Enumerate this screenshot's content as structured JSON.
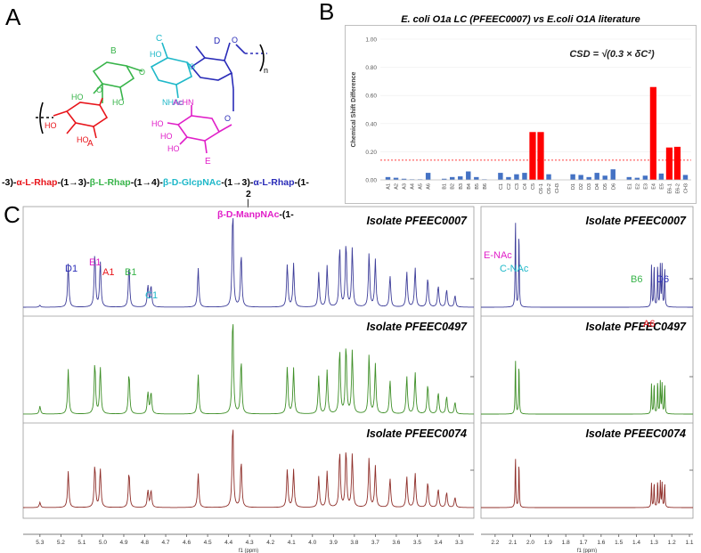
{
  "panels": {
    "a": "A",
    "b": "B",
    "c": "C"
  },
  "structure": {
    "residues": [
      {
        "id": "A",
        "color": "#e8151b"
      },
      {
        "id": "B",
        "color": "#38b44a"
      },
      {
        "id": "C",
        "color": "#1fb8c9"
      },
      {
        "id": "D",
        "color": "#2a2cb8"
      },
      {
        "id": "E",
        "color": "#e01fc8"
      }
    ],
    "atom_labels": {
      "ho": "HO",
      "o": "O",
      "nhac": "NHAc",
      "achn": "AcHN",
      "n": "n"
    },
    "sequence": [
      {
        "text": "-3)-",
        "color": "#000000"
      },
      {
        "text": "α-L-Rhap",
        "color": "#e8151b"
      },
      {
        "text": "-(1→3)-",
        "color": "#000000"
      },
      {
        "text": "β-L-Rhap",
        "color": "#38b44a"
      },
      {
        "text": "-(1→4)-",
        "color": "#000000"
      },
      {
        "text": "β-D-GlcpNAc",
        "color": "#1fb8c9"
      },
      {
        "text": "-(1→3)-",
        "color": "#000000"
      },
      {
        "text": "α-L-Rhap",
        "color": "#2a2cb8"
      },
      {
        "text": "-(1-",
        "color": "#000000"
      }
    ],
    "branch_position": "2",
    "branch_bar": "|",
    "branch": [
      {
        "text": "β-D-ManpNAc",
        "color": "#e01fc8"
      },
      {
        "text": "-(1-",
        "color": "#000000"
      }
    ]
  },
  "chart_data": [
    {
      "type": "bar",
      "title_italic": "E. coli",
      "title_rest": " O1a LC (PFEEC0007)  vs E.coli O1A literature",
      "ylabel": "Chemical Shift Difference",
      "ylim": [
        0,
        1.0
      ],
      "yticks": [
        "0.00",
        "0.20",
        "0.40",
        "0.60",
        "0.80",
        "1.00"
      ],
      "formula": "CSD = √(0.3 × δC²)",
      "threshold": 0.14,
      "colors": {
        "normal": "#4472c4",
        "high": "#ff0000",
        "threshold": "#ff0000"
      },
      "categories": [
        "A1",
        "A2",
        "A3",
        "A4",
        "A5",
        "A6",
        "",
        "B1",
        "B2",
        "B3",
        "B4",
        "B5",
        "B6",
        "",
        "C1",
        "C2",
        "C3",
        "C4",
        "C5",
        "C6-1",
        "C6-2",
        "CH3",
        "",
        "D1",
        "D2",
        "D3",
        "D4",
        "D5",
        "D6",
        "",
        "E1",
        "E2",
        "E3",
        "E4",
        "E5",
        "E6-1",
        "E6-2",
        "CH3"
      ],
      "values": [
        0.02,
        0.015,
        0.008,
        0.004,
        0.004,
        0.05,
        null,
        0.008,
        0.02,
        0.025,
        0.06,
        0.02,
        0.004,
        null,
        0.05,
        0.02,
        0.04,
        0.05,
        0.34,
        0.34,
        0.04,
        null,
        null,
        0.04,
        0.035,
        0.02,
        0.05,
        0.03,
        0.075,
        null,
        0.02,
        0.015,
        0.03,
        0.66,
        0.045,
        0.23,
        0.235,
        0.035
      ]
    },
    {
      "type": "line",
      "title": "Isolate PFEEC0007",
      "xlabel": "f1 (ppm)",
      "xlim": [
        5.38,
        3.23
      ],
      "color": "#3d3d99",
      "peaks": [
        {
          "x": 5.3,
          "y": 0.02
        },
        {
          "x": 5.165,
          "y": 0.44
        },
        {
          "x": 5.038,
          "y": 0.55
        },
        {
          "x": 5.012,
          "y": 0.46
        },
        {
          "x": 4.875,
          "y": 0.42
        },
        {
          "x": 4.785,
          "y": 0.22
        },
        {
          "x": 4.77,
          "y": 0.22
        },
        {
          "x": 4.545,
          "y": 0.4
        },
        {
          "x": 4.38,
          "y": 1.0
        },
        {
          "x": 4.34,
          "y": 0.55
        },
        {
          "x": 4.12,
          "y": 0.44
        },
        {
          "x": 4.09,
          "y": 0.44
        },
        {
          "x": 3.97,
          "y": 0.35
        },
        {
          "x": 3.93,
          "y": 0.42
        },
        {
          "x": 3.87,
          "y": 0.62
        },
        {
          "x": 3.84,
          "y": 0.66
        },
        {
          "x": 3.81,
          "y": 0.6
        },
        {
          "x": 3.73,
          "y": 0.55
        },
        {
          "x": 3.7,
          "y": 0.48
        },
        {
          "x": 3.63,
          "y": 0.32
        },
        {
          "x": 3.55,
          "y": 0.36
        },
        {
          "x": 3.51,
          "y": 0.4
        },
        {
          "x": 3.45,
          "y": 0.3
        },
        {
          "x": 3.4,
          "y": 0.22
        },
        {
          "x": 3.36,
          "y": 0.18
        },
        {
          "x": 3.32,
          "y": 0.12
        }
      ]
    },
    {
      "type": "line",
      "title": "Isolate PFEEC0497",
      "xlabel": "f1 (ppm)",
      "xlim": [
        5.38,
        3.23
      ],
      "color": "#3f8f28",
      "peaks": [
        {
          "x": 5.3,
          "y": 0.08
        },
        {
          "x": 5.165,
          "y": 0.45
        },
        {
          "x": 5.038,
          "y": 0.52
        },
        {
          "x": 5.012,
          "y": 0.47
        },
        {
          "x": 4.875,
          "y": 0.42
        },
        {
          "x": 4.785,
          "y": 0.22
        },
        {
          "x": 4.77,
          "y": 0.22
        },
        {
          "x": 4.545,
          "y": 0.4
        },
        {
          "x": 4.38,
          "y": 1.0
        },
        {
          "x": 4.34,
          "y": 0.55
        },
        {
          "x": 4.12,
          "y": 0.48
        },
        {
          "x": 4.09,
          "y": 0.46
        },
        {
          "x": 3.97,
          "y": 0.38
        },
        {
          "x": 3.93,
          "y": 0.44
        },
        {
          "x": 3.87,
          "y": 0.66
        },
        {
          "x": 3.84,
          "y": 0.7
        },
        {
          "x": 3.81,
          "y": 0.64
        },
        {
          "x": 3.73,
          "y": 0.6
        },
        {
          "x": 3.7,
          "y": 0.5
        },
        {
          "x": 3.63,
          "y": 0.34
        },
        {
          "x": 3.55,
          "y": 0.38
        },
        {
          "x": 3.51,
          "y": 0.42
        },
        {
          "x": 3.45,
          "y": 0.3
        },
        {
          "x": 3.4,
          "y": 0.22
        },
        {
          "x": 3.36,
          "y": 0.18
        },
        {
          "x": 3.32,
          "y": 0.12
        }
      ]
    },
    {
      "type": "line",
      "title": "Isolate PFEEC0074",
      "xlabel": "f1 (ppm)",
      "xlim": [
        5.38,
        3.23
      ],
      "color": "#8f2f2a",
      "peaks": [
        {
          "x": 5.3,
          "y": 0.06
        },
        {
          "x": 5.165,
          "y": 0.42
        },
        {
          "x": 5.038,
          "y": 0.5
        },
        {
          "x": 5.012,
          "y": 0.45
        },
        {
          "x": 4.875,
          "y": 0.42
        },
        {
          "x": 4.785,
          "y": 0.2
        },
        {
          "x": 4.77,
          "y": 0.2
        },
        {
          "x": 4.545,
          "y": 0.4
        },
        {
          "x": 4.38,
          "y": 1.0
        },
        {
          "x": 4.34,
          "y": 0.55
        },
        {
          "x": 4.12,
          "y": 0.45
        },
        {
          "x": 4.09,
          "y": 0.44
        },
        {
          "x": 3.97,
          "y": 0.36
        },
        {
          "x": 3.93,
          "y": 0.42
        },
        {
          "x": 3.87,
          "y": 0.66
        },
        {
          "x": 3.84,
          "y": 0.68
        },
        {
          "x": 3.81,
          "y": 0.62
        },
        {
          "x": 3.73,
          "y": 0.58
        },
        {
          "x": 3.7,
          "y": 0.48
        },
        {
          "x": 3.63,
          "y": 0.34
        },
        {
          "x": 3.55,
          "y": 0.36
        },
        {
          "x": 3.51,
          "y": 0.4
        },
        {
          "x": 3.45,
          "y": 0.3
        },
        {
          "x": 3.4,
          "y": 0.22
        },
        {
          "x": 3.36,
          "y": 0.18
        },
        {
          "x": 3.32,
          "y": 0.12
        }
      ]
    },
    {
      "type": "line",
      "title": "Isolate PFEEC0007",
      "xlabel": "f1 (ppm)",
      "xlim": [
        2.28,
        1.08
      ],
      "color": "#3d3d99",
      "peaks": [
        {
          "x": 2.085,
          "y": 0.88
        },
        {
          "x": 2.065,
          "y": 0.76
        },
        {
          "x": 1.315,
          "y": 0.42
        },
        {
          "x": 1.3,
          "y": 0.42
        },
        {
          "x": 1.28,
          "y": 0.42
        },
        {
          "x": 1.265,
          "y": 0.42
        },
        {
          "x": 1.255,
          "y": 0.42
        },
        {
          "x": 1.24,
          "y": 0.4
        }
      ]
    },
    {
      "type": "line",
      "title": "Isolate PFEEC0497",
      "xlabel": "f1 (ppm)",
      "xlim": [
        2.28,
        1.08
      ],
      "color": "#3f8f28",
      "peaks": [
        {
          "x": 2.085,
          "y": 0.55
        },
        {
          "x": 2.065,
          "y": 0.5
        },
        {
          "x": 1.315,
          "y": 0.3
        },
        {
          "x": 1.3,
          "y": 0.3
        },
        {
          "x": 1.28,
          "y": 0.32
        },
        {
          "x": 1.265,
          "y": 0.32
        },
        {
          "x": 1.255,
          "y": 0.3
        },
        {
          "x": 1.24,
          "y": 0.3
        }
      ]
    },
    {
      "type": "line",
      "title": "Isolate PFEEC0074",
      "xlabel": "f1 (ppm)",
      "xlim": [
        2.28,
        1.08
      ],
      "color": "#8f2f2a",
      "peaks": [
        {
          "x": 2.085,
          "y": 0.58
        },
        {
          "x": 2.065,
          "y": 0.52
        },
        {
          "x": 1.315,
          "y": 0.28
        },
        {
          "x": 1.3,
          "y": 0.28
        },
        {
          "x": 1.28,
          "y": 0.3
        },
        {
          "x": 1.265,
          "y": 0.3
        },
        {
          "x": 1.255,
          "y": 0.28
        },
        {
          "x": 1.24,
          "y": 0.28
        }
      ]
    }
  ],
  "spectrum_labels": [
    {
      "text": "D1",
      "color": "#2a2cb8"
    },
    {
      "text": "E1",
      "color": "#e01fc8"
    },
    {
      "text": "A1",
      "color": "#e8151b"
    },
    {
      "text": "B1",
      "color": "#38b44a"
    },
    {
      "text": "C1",
      "color": "#1fb8c9"
    },
    {
      "text": "E-NAc",
      "color": "#e01fc8"
    },
    {
      "text": "C-NAc",
      "color": "#1fb8c9"
    },
    {
      "text": "B6",
      "color": "#38b44a"
    },
    {
      "text": "D6",
      "color": "#2a2cb8"
    },
    {
      "text": "A6",
      "color": "#e8151b"
    }
  ],
  "axis_left": {
    "ticks": [
      "5.3",
      "5.2",
      "5.1",
      "5.0",
      "4.9",
      "4.8",
      "4.7",
      "4.6",
      "4.5",
      "4.4",
      "4.3",
      "4.2",
      "4.1",
      "4.0",
      "3.9",
      "3.8",
      "3.7",
      "3.6",
      "3.5",
      "3.4",
      "3.3"
    ],
    "label": "f1 (ppm)"
  },
  "axis_right": {
    "ticks": [
      "2.2",
      "2.1",
      "2.0",
      "1.9",
      "1.8",
      "1.7",
      "1.6",
      "1.5",
      "1.4",
      "1.3",
      "1.2",
      "1.1"
    ],
    "label": "f1 (ppm)"
  }
}
